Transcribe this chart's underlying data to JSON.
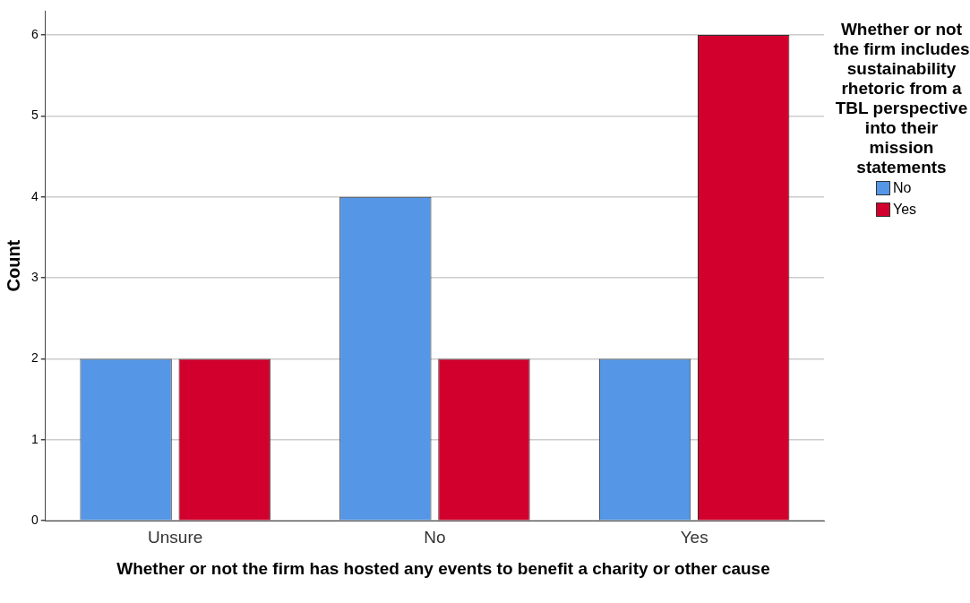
{
  "chart_data": {
    "type": "bar",
    "xlabel": "Whether or not the firm has hosted any events to benefit a charity or other cause",
    "ylabel": "Count",
    "legend_title": "Whether or not the firm includes sustainability rhetoric from a TBL perspective into their mission statements",
    "categories": [
      "Unsure",
      "No",
      "Yes"
    ],
    "series": [
      {
        "name": "No",
        "color": "#5596e6",
        "values": [
          2,
          4,
          2
        ]
      },
      {
        "name": "Yes",
        "color": "#d2002c",
        "values": [
          2,
          2,
          6
        ]
      }
    ],
    "ylim": [
      0,
      6.3
    ],
    "yticks": [
      0,
      1,
      2,
      3,
      4,
      5,
      6
    ],
    "grid": "y",
    "legend": "right"
  }
}
